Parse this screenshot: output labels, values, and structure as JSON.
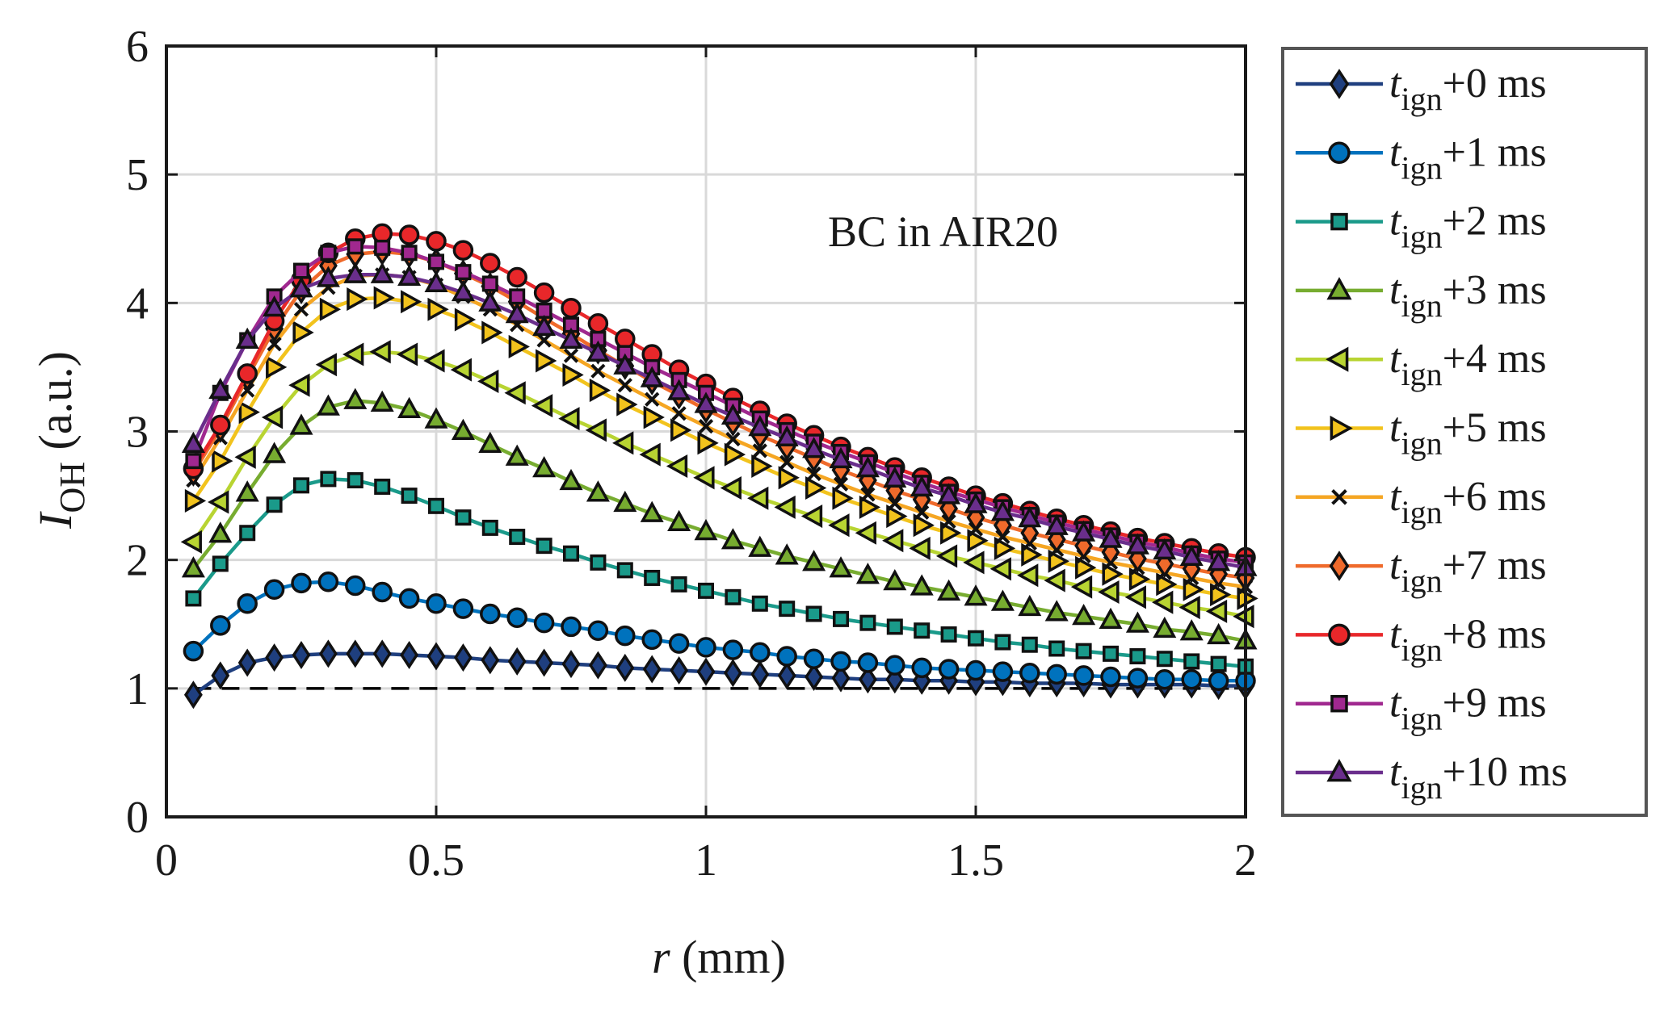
{
  "chart_data": {
    "type": "line",
    "title": "",
    "annotation": "BC in AIR20",
    "xlabel": {
      "italic": "r",
      "rest": " (mm)"
    },
    "ylabel": {
      "main": "I",
      "sub": "OH",
      "rest": " (a.u.)"
    },
    "xlim": [
      0,
      2
    ],
    "ylim": [
      0,
      6
    ],
    "xticks": [
      0,
      0.5,
      1,
      1.5,
      2
    ],
    "xtick_labels": [
      "0",
      "0.5",
      "1",
      "1.5",
      "2"
    ],
    "yticks": [
      0,
      1,
      2,
      3,
      4,
      5,
      6
    ],
    "ytick_labels": [
      "0",
      "1",
      "2",
      "3",
      "4",
      "5",
      "6"
    ],
    "grid": true,
    "reference_line": {
      "y": 1,
      "style": "dashed",
      "color": "#000000"
    },
    "legend_position": "outside-right",
    "x": [
      0.05,
      0.1,
      0.15,
      0.2,
      0.25,
      0.3,
      0.35,
      0.4,
      0.45,
      0.5,
      0.55,
      0.6,
      0.65,
      0.7,
      0.75,
      0.8,
      0.85,
      0.9,
      0.95,
      1.0,
      1.05,
      1.1,
      1.15,
      1.2,
      1.25,
      1.3,
      1.35,
      1.4,
      1.45,
      1.5,
      1.55,
      1.6,
      1.65,
      1.7,
      1.75,
      1.8,
      1.85,
      1.9,
      1.95,
      2.0
    ],
    "series": [
      {
        "name_t": "t",
        "name_sub": "ign",
        "name_rest": "+0 ms",
        "color": "#1f3f7f",
        "marker": "diamond",
        "values": [
          0.95,
          1.1,
          1.2,
          1.24,
          1.26,
          1.27,
          1.27,
          1.27,
          1.26,
          1.25,
          1.24,
          1.22,
          1.21,
          1.2,
          1.19,
          1.18,
          1.16,
          1.15,
          1.14,
          1.13,
          1.12,
          1.11,
          1.1,
          1.09,
          1.08,
          1.07,
          1.07,
          1.06,
          1.06,
          1.05,
          1.05,
          1.04,
          1.04,
          1.04,
          1.03,
          1.03,
          1.03,
          1.03,
          1.02,
          1.02
        ]
      },
      {
        "name_t": "t",
        "name_sub": "ign",
        "name_rest": "+1 ms",
        "color": "#0072bd",
        "marker": "circle",
        "values": [
          1.29,
          1.49,
          1.66,
          1.77,
          1.82,
          1.83,
          1.8,
          1.75,
          1.7,
          1.66,
          1.62,
          1.58,
          1.55,
          1.51,
          1.48,
          1.45,
          1.41,
          1.38,
          1.35,
          1.32,
          1.3,
          1.28,
          1.25,
          1.23,
          1.21,
          1.2,
          1.18,
          1.16,
          1.15,
          1.14,
          1.13,
          1.12,
          1.11,
          1.1,
          1.09,
          1.08,
          1.07,
          1.07,
          1.06,
          1.06
        ]
      },
      {
        "name_t": "t",
        "name_sub": "ign",
        "name_rest": "+2 ms",
        "color": "#1a9a8a",
        "marker": "square",
        "values": [
          1.7,
          1.97,
          2.21,
          2.43,
          2.58,
          2.63,
          2.62,
          2.57,
          2.5,
          2.42,
          2.33,
          2.25,
          2.18,
          2.11,
          2.05,
          1.98,
          1.92,
          1.86,
          1.81,
          1.76,
          1.71,
          1.66,
          1.62,
          1.58,
          1.54,
          1.51,
          1.48,
          1.45,
          1.42,
          1.39,
          1.36,
          1.34,
          1.31,
          1.29,
          1.27,
          1.25,
          1.23,
          1.21,
          1.19,
          1.17
        ]
      },
      {
        "name_t": "t",
        "name_sub": "ign",
        "name_rest": "+3 ms",
        "color": "#77ac30",
        "marker": "triangle-up",
        "values": [
          1.93,
          2.2,
          2.52,
          2.82,
          3.04,
          3.19,
          3.24,
          3.22,
          3.17,
          3.09,
          3.0,
          2.9,
          2.8,
          2.71,
          2.61,
          2.52,
          2.44,
          2.36,
          2.29,
          2.22,
          2.15,
          2.09,
          2.03,
          1.98,
          1.93,
          1.88,
          1.83,
          1.79,
          1.75,
          1.71,
          1.67,
          1.63,
          1.59,
          1.56,
          1.53,
          1.5,
          1.46,
          1.44,
          1.41,
          1.37
        ]
      },
      {
        "name_t": "t",
        "name_sub": "ign",
        "name_rest": "+4 ms",
        "color": "#b8d432",
        "marker": "triangle-left",
        "values": [
          2.14,
          2.45,
          2.8,
          3.11,
          3.36,
          3.52,
          3.6,
          3.62,
          3.6,
          3.55,
          3.48,
          3.39,
          3.3,
          3.2,
          3.1,
          3.01,
          2.91,
          2.82,
          2.73,
          2.64,
          2.56,
          2.48,
          2.41,
          2.34,
          2.27,
          2.21,
          2.15,
          2.09,
          2.03,
          1.98,
          1.93,
          1.88,
          1.84,
          1.79,
          1.75,
          1.71,
          1.67,
          1.63,
          1.6,
          1.56
        ]
      },
      {
        "name_t": "t",
        "name_sub": "ign",
        "name_rest": "+5 ms",
        "color": "#f2c31d",
        "marker": "triangle-right",
        "values": [
          2.46,
          2.77,
          3.15,
          3.5,
          3.77,
          3.95,
          4.03,
          4.04,
          4.01,
          3.95,
          3.87,
          3.77,
          3.66,
          3.55,
          3.44,
          3.32,
          3.21,
          3.11,
          3.01,
          2.91,
          2.82,
          2.73,
          2.64,
          2.56,
          2.48,
          2.41,
          2.34,
          2.27,
          2.21,
          2.15,
          2.09,
          2.04,
          1.99,
          1.94,
          1.89,
          1.85,
          1.81,
          1.77,
          1.73,
          1.7
        ]
      },
      {
        "name_t": "t",
        "name_sub": "ign",
        "name_rest": "+6 ms",
        "color": "#f5a623",
        "marker": "x",
        "values": [
          2.62,
          2.95,
          3.32,
          3.68,
          3.95,
          4.12,
          4.21,
          4.22,
          4.2,
          4.14,
          4.05,
          3.95,
          3.83,
          3.71,
          3.59,
          3.47,
          3.36,
          3.25,
          3.14,
          3.04,
          2.94,
          2.85,
          2.76,
          2.67,
          2.59,
          2.51,
          2.44,
          2.37,
          2.3,
          2.24,
          2.18,
          2.13,
          2.08,
          2.03,
          1.98,
          1.94,
          1.9,
          1.86,
          1.82,
          1.79
        ]
      },
      {
        "name_t": "t",
        "name_sub": "ign",
        "name_rest": "+7 ms",
        "color": "#ef6a2b",
        "marker": "diamond",
        "values": [
          2.68,
          3.02,
          3.42,
          3.8,
          4.1,
          4.29,
          4.38,
          4.4,
          4.38,
          4.32,
          4.23,
          4.13,
          4.01,
          3.88,
          3.76,
          3.63,
          3.51,
          3.39,
          3.28,
          3.17,
          3.07,
          2.97,
          2.88,
          2.79,
          2.7,
          2.62,
          2.54,
          2.47,
          2.4,
          2.33,
          2.27,
          2.21,
          2.16,
          2.11,
          2.06,
          2.01,
          1.97,
          1.93,
          1.89,
          1.86
        ]
      },
      {
        "name_t": "t",
        "name_sub": "ign",
        "name_rest": "+8 ms",
        "color": "#e8272a",
        "marker": "circle",
        "values": [
          2.71,
          3.05,
          3.45,
          3.86,
          4.18,
          4.39,
          4.5,
          4.54,
          4.53,
          4.48,
          4.41,
          4.31,
          4.2,
          4.08,
          3.96,
          3.84,
          3.72,
          3.6,
          3.48,
          3.37,
          3.26,
          3.16,
          3.06,
          2.97,
          2.88,
          2.8,
          2.72,
          2.64,
          2.57,
          2.5,
          2.44,
          2.38,
          2.32,
          2.27,
          2.22,
          2.17,
          2.13,
          2.09,
          2.05,
          2.02
        ]
      },
      {
        "name_t": "t",
        "name_sub": "ign",
        "name_rest": "+9 ms",
        "color": "#a0288f",
        "marker": "square",
        "values": [
          2.77,
          3.3,
          3.71,
          4.05,
          4.25,
          4.39,
          4.44,
          4.43,
          4.39,
          4.32,
          4.24,
          4.15,
          4.05,
          3.94,
          3.83,
          3.72,
          3.61,
          3.5,
          3.4,
          3.3,
          3.2,
          3.1,
          3.01,
          2.92,
          2.84,
          2.76,
          2.68,
          2.6,
          2.53,
          2.47,
          2.41,
          2.35,
          2.29,
          2.24,
          2.19,
          2.14,
          2.1,
          2.05,
          2.01,
          1.98
        ]
      },
      {
        "name_t": "t",
        "name_sub": "ign",
        "name_rest": "+10 ms",
        "color": "#6a2e8c",
        "marker": "triangle-up",
        "values": [
          2.9,
          3.32,
          3.71,
          3.96,
          4.11,
          4.19,
          4.22,
          4.22,
          4.2,
          4.15,
          4.08,
          4.0,
          3.91,
          3.81,
          3.71,
          3.61,
          3.51,
          3.41,
          3.31,
          3.21,
          3.12,
          3.03,
          2.95,
          2.86,
          2.78,
          2.71,
          2.63,
          2.56,
          2.5,
          2.43,
          2.37,
          2.32,
          2.26,
          2.21,
          2.16,
          2.11,
          2.07,
          2.02,
          1.98,
          1.94
        ]
      }
    ]
  }
}
